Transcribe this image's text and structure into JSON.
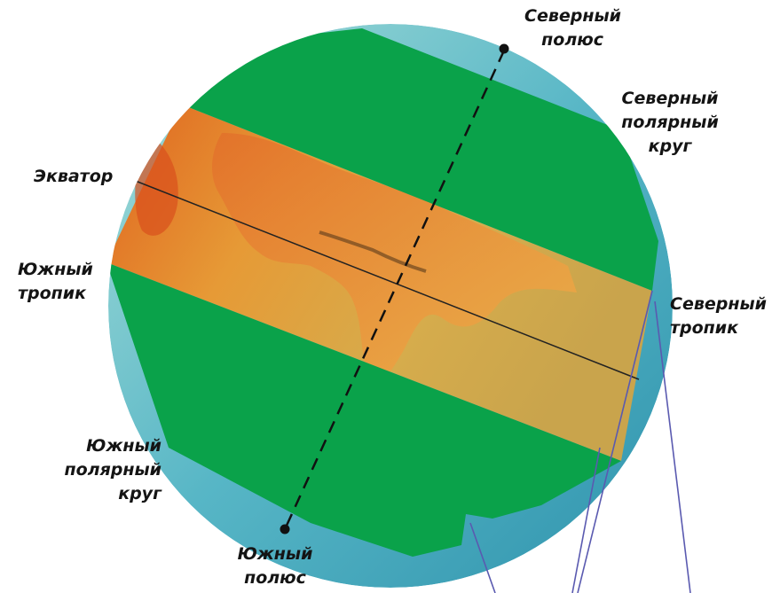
{
  "labels": {
    "north_pole": [
      "Северный",
      "полюс"
    ],
    "arctic_circle": [
      "Северный",
      "полярный",
      "круг"
    ],
    "equator": [
      "Экватор"
    ],
    "south_tropic": [
      "Южный",
      "тропик"
    ],
    "north_tropic": [
      "Северный",
      "тропик"
    ],
    "antarctic_circle": [
      "Южный",
      "полярный",
      "круг"
    ],
    "south_pole": [
      "Южный",
      "полюс"
    ]
  },
  "colors": {
    "zone_green": "#0aa24a",
    "tropical_band": "#d9a33e",
    "polar_ocean": "#57b6c6",
    "callout_stroke": "#5a5ab0"
  }
}
